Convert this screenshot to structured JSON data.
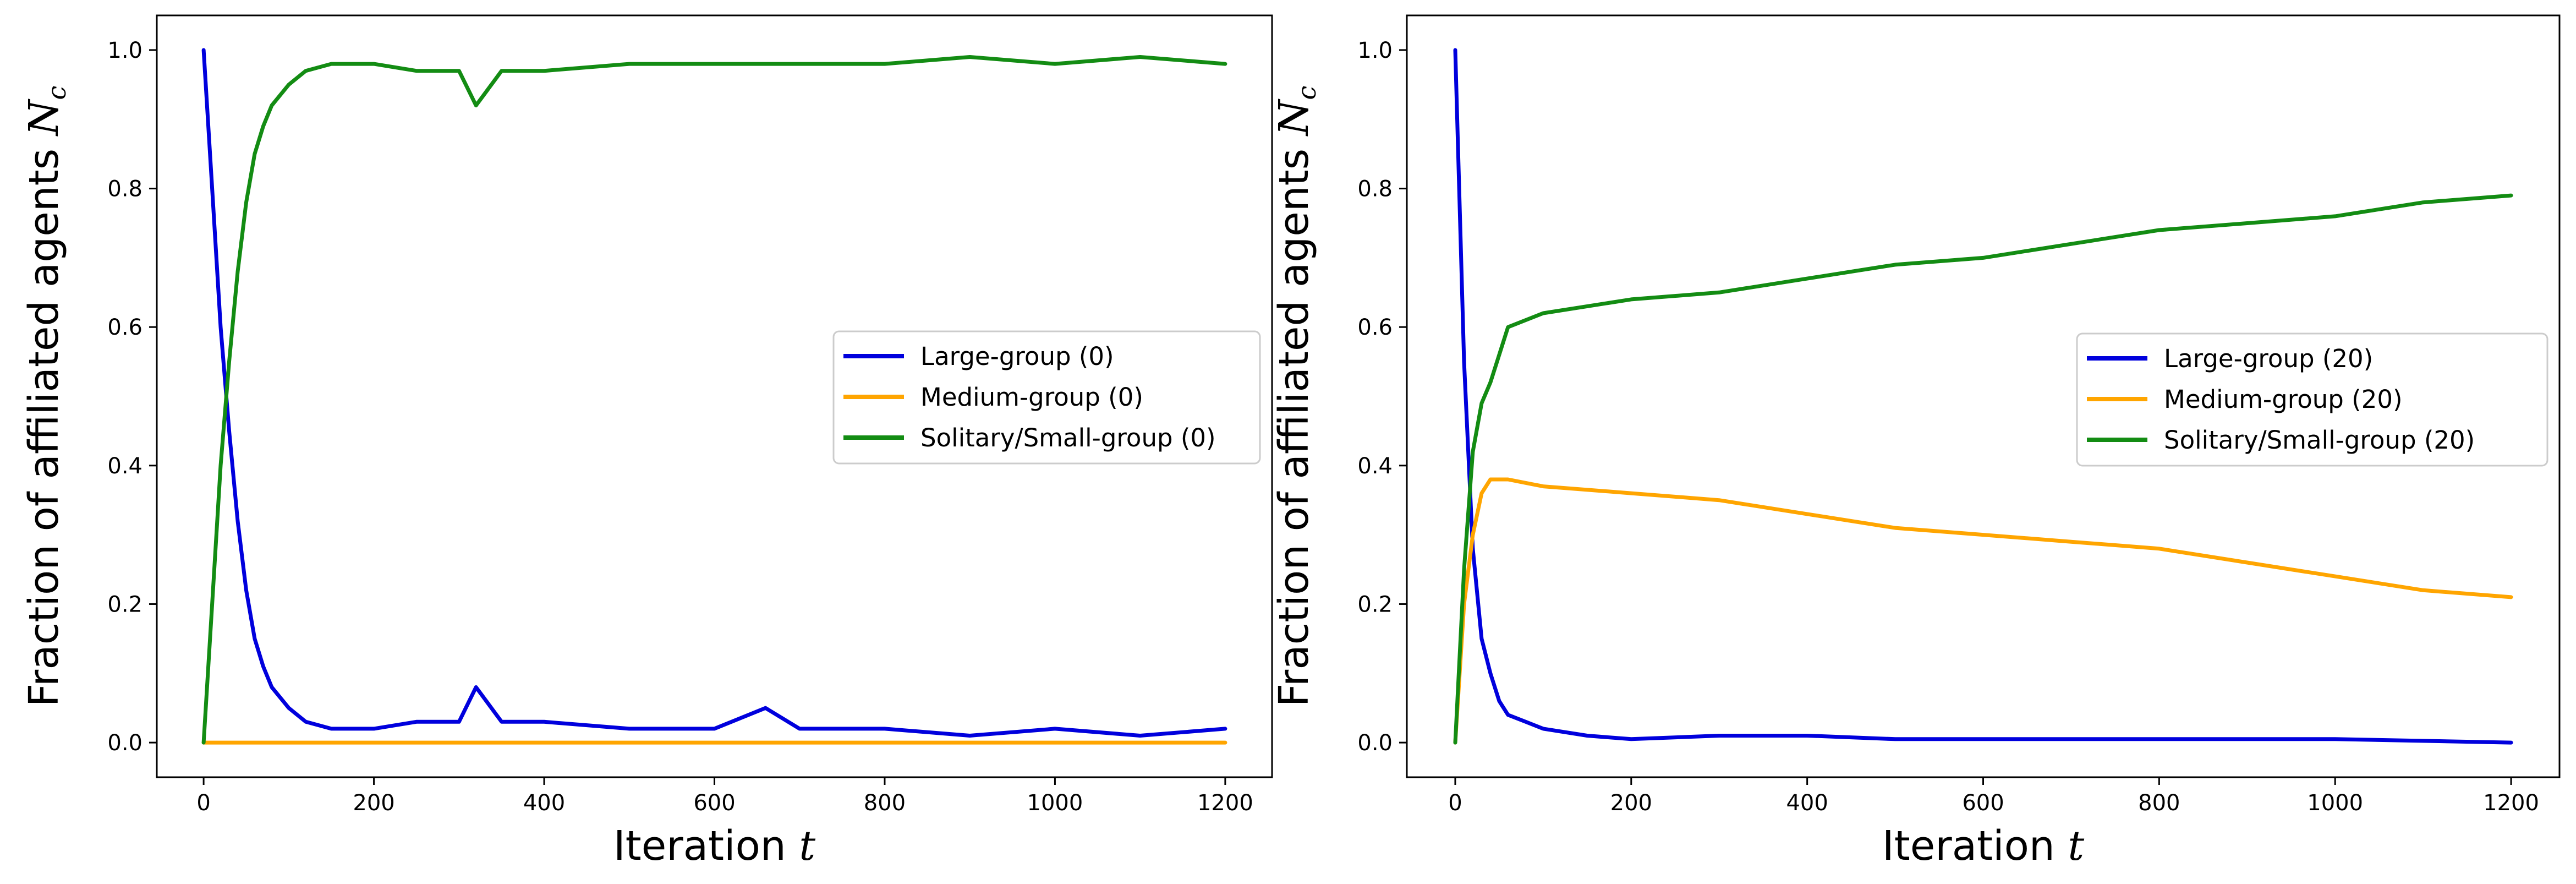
{
  "chart_data": [
    {
      "type": "line",
      "title": "",
      "xlabel": "Iteration t",
      "ylabel": "Fraction of affiliated agents N_c",
      "xlabel_text": "Iteration ",
      "xlabel_var": "t",
      "ylabel_text": "Fraction of affiliated agents ",
      "ylabel_var": "N",
      "ylabel_sub": "c",
      "xlim": [
        -55,
        1255
      ],
      "ylim": [
        -0.05,
        1.05
      ],
      "xticks": [
        0,
        200,
        400,
        600,
        800,
        1000,
        1200
      ],
      "yticks": [
        0.0,
        0.2,
        0.4,
        0.6,
        0.8,
        1.0
      ],
      "xtick_labels": [
        "0",
        "200",
        "400",
        "600",
        "800",
        "1000",
        "1200"
      ],
      "ytick_labels": [
        "0.0",
        "0.2",
        "0.4",
        "0.6",
        "0.8",
        "1.0"
      ],
      "grid": false,
      "legend_position": "center-right",
      "legend": [
        {
          "label": "Large-group (0)",
          "color": "#0000dd"
        },
        {
          "label": "Medium-group (0)",
          "color": "#ffa500"
        },
        {
          "label": "Solitary/Small-group (0)",
          "color": "#138c13"
        }
      ],
      "series": [
        {
          "name": "Large-group (0)",
          "color": "#0000dd",
          "x": [
            0,
            10,
            20,
            30,
            40,
            50,
            60,
            70,
            80,
            100,
            120,
            150,
            200,
            250,
            300,
            320,
            350,
            400,
            500,
            600,
            660,
            700,
            800,
            900,
            1000,
            1100,
            1200
          ],
          "y": [
            1.0,
            0.8,
            0.6,
            0.45,
            0.32,
            0.22,
            0.15,
            0.11,
            0.08,
            0.05,
            0.03,
            0.02,
            0.02,
            0.03,
            0.03,
            0.08,
            0.03,
            0.03,
            0.02,
            0.02,
            0.05,
            0.02,
            0.02,
            0.01,
            0.02,
            0.01,
            0.02
          ]
        },
        {
          "name": "Medium-group (0)",
          "color": "#ffa500",
          "x": [
            0,
            200,
            400,
            600,
            800,
            1000,
            1200
          ],
          "y": [
            0.0,
            0.0,
            0.0,
            0.0,
            0.0,
            0.0,
            0.0
          ]
        },
        {
          "name": "Solitary/Small-group (0)",
          "color": "#138c13",
          "x": [
            0,
            10,
            20,
            30,
            40,
            50,
            60,
            70,
            80,
            100,
            120,
            150,
            200,
            250,
            300,
            320,
            350,
            400,
            500,
            600,
            700,
            800,
            900,
            1000,
            1100,
            1200
          ],
          "y": [
            0.0,
            0.2,
            0.4,
            0.55,
            0.68,
            0.78,
            0.85,
            0.89,
            0.92,
            0.95,
            0.97,
            0.98,
            0.98,
            0.97,
            0.97,
            0.92,
            0.97,
            0.97,
            0.98,
            0.98,
            0.98,
            0.98,
            0.99,
            0.98,
            0.99,
            0.98
          ]
        }
      ]
    },
    {
      "type": "line",
      "title": "",
      "xlabel": "Iteration t",
      "ylabel": "Fraction of affiliated agents N_c",
      "xlabel_text": "Iteration ",
      "xlabel_var": "t",
      "ylabel_text": "Fraction of affiliated agents ",
      "ylabel_var": "N",
      "ylabel_sub": "c",
      "xlim": [
        -55,
        1255
      ],
      "ylim": [
        -0.05,
        1.05
      ],
      "xticks": [
        0,
        200,
        400,
        600,
        800,
        1000,
        1200
      ],
      "yticks": [
        0.0,
        0.2,
        0.4,
        0.6,
        0.8,
        1.0
      ],
      "xtick_labels": [
        "0",
        "200",
        "400",
        "600",
        "800",
        "1000",
        "1200"
      ],
      "ytick_labels": [
        "0.0",
        "0.2",
        "0.4",
        "0.6",
        "0.8",
        "1.0"
      ],
      "grid": false,
      "legend_position": "center-right",
      "legend": [
        {
          "label": "Large-group (20)",
          "color": "#0000dd"
        },
        {
          "label": "Medium-group (20)",
          "color": "#ffa500"
        },
        {
          "label": "Solitary/Small-group (20)",
          "color": "#138c13"
        }
      ],
      "series": [
        {
          "name": "Large-group (20)",
          "color": "#0000dd",
          "x": [
            0,
            10,
            20,
            30,
            40,
            50,
            60,
            80,
            100,
            150,
            200,
            300,
            400,
            500,
            600,
            800,
            1000,
            1200
          ],
          "y": [
            1.0,
            0.55,
            0.28,
            0.15,
            0.1,
            0.06,
            0.04,
            0.03,
            0.02,
            0.01,
            0.005,
            0.01,
            0.01,
            0.005,
            0.005,
            0.005,
            0.005,
            0.0
          ]
        },
        {
          "name": "Medium-group (20)",
          "color": "#ffa500",
          "x": [
            0,
            10,
            20,
            30,
            40,
            60,
            100,
            200,
            300,
            400,
            500,
            600,
            700,
            800,
            900,
            1000,
            1100,
            1200
          ],
          "y": [
            0.0,
            0.2,
            0.3,
            0.36,
            0.38,
            0.38,
            0.37,
            0.36,
            0.35,
            0.33,
            0.31,
            0.3,
            0.29,
            0.28,
            0.26,
            0.24,
            0.22,
            0.21
          ]
        },
        {
          "name": "Solitary/Small-group (20)",
          "color": "#138c13",
          "x": [
            0,
            10,
            20,
            30,
            40,
            60,
            100,
            200,
            300,
            400,
            500,
            600,
            700,
            800,
            900,
            1000,
            1100,
            1200
          ],
          "y": [
            0.0,
            0.25,
            0.42,
            0.49,
            0.52,
            0.6,
            0.62,
            0.64,
            0.65,
            0.67,
            0.69,
            0.7,
            0.72,
            0.74,
            0.75,
            0.76,
            0.78,
            0.79
          ]
        }
      ]
    }
  ]
}
